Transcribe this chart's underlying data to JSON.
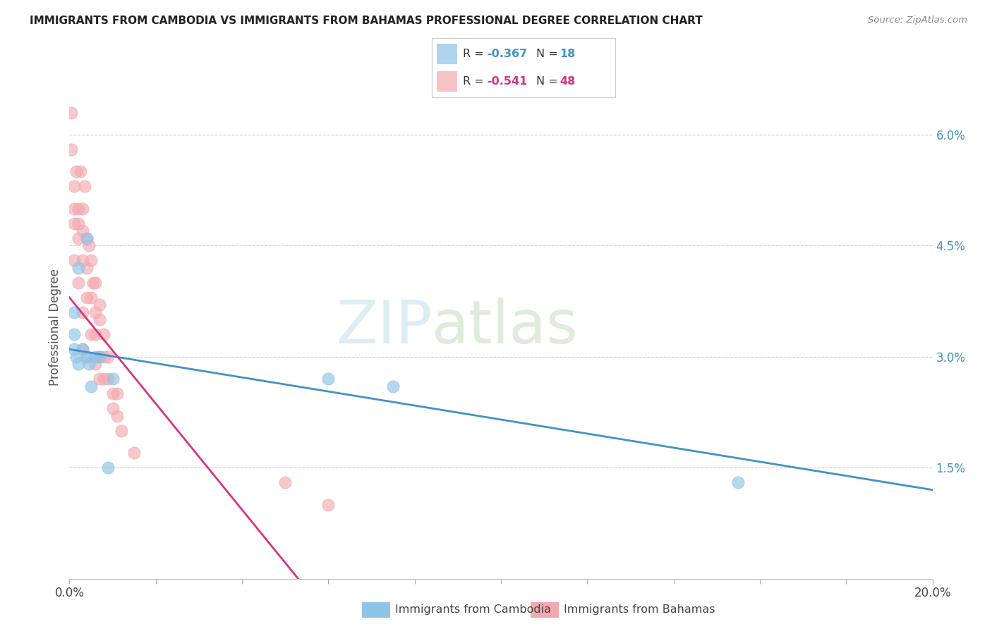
{
  "title": "IMMIGRANTS FROM CAMBODIA VS IMMIGRANTS FROM BAHAMAS PROFESSIONAL DEGREE CORRELATION CHART",
  "source": "Source: ZipAtlas.com",
  "ylabel": "Professional Degree",
  "right_yticks": [
    "6.0%",
    "4.5%",
    "3.0%",
    "1.5%"
  ],
  "right_ytick_vals": [
    0.06,
    0.045,
    0.03,
    0.015
  ],
  "xlim": [
    0.0,
    0.2
  ],
  "ylim": [
    0.0,
    0.068
  ],
  "color_cambodia": "#8ec4e8",
  "color_bahamas": "#f4a9b0",
  "color_line_cambodia": "#4292c6",
  "color_line_bahamas": "#d63384",
  "watermark_zip": "ZIP",
  "watermark_atlas": "atlas",
  "cambodia_x": [
    0.001,
    0.001,
    0.001,
    0.0015,
    0.002,
    0.002,
    0.003,
    0.004,
    0.004,
    0.0045,
    0.005,
    0.006,
    0.007,
    0.009,
    0.01,
    0.06,
    0.075,
    0.155
  ],
  "cambodia_y": [
    0.036,
    0.033,
    0.031,
    0.03,
    0.042,
    0.029,
    0.031,
    0.046,
    0.03,
    0.029,
    0.026,
    0.03,
    0.03,
    0.015,
    0.027,
    0.027,
    0.026,
    0.013
  ],
  "bahamas_x": [
    0.0005,
    0.0005,
    0.001,
    0.001,
    0.001,
    0.001,
    0.0015,
    0.002,
    0.002,
    0.002,
    0.002,
    0.0025,
    0.003,
    0.003,
    0.003,
    0.003,
    0.003,
    0.0035,
    0.004,
    0.004,
    0.004,
    0.004,
    0.0045,
    0.005,
    0.005,
    0.005,
    0.0055,
    0.006,
    0.006,
    0.006,
    0.006,
    0.007,
    0.007,
    0.007,
    0.007,
    0.008,
    0.008,
    0.008,
    0.009,
    0.009,
    0.01,
    0.01,
    0.011,
    0.011,
    0.012,
    0.015,
    0.05,
    0.06
  ],
  "bahamas_y": [
    0.063,
    0.058,
    0.053,
    0.05,
    0.048,
    0.043,
    0.055,
    0.05,
    0.048,
    0.046,
    0.04,
    0.055,
    0.05,
    0.047,
    0.043,
    0.036,
    0.031,
    0.053,
    0.046,
    0.042,
    0.038,
    0.03,
    0.045,
    0.043,
    0.038,
    0.033,
    0.04,
    0.04,
    0.036,
    0.033,
    0.029,
    0.037,
    0.035,
    0.03,
    0.027,
    0.033,
    0.03,
    0.027,
    0.03,
    0.027,
    0.025,
    0.023,
    0.025,
    0.022,
    0.02,
    0.017,
    0.013,
    0.01
  ],
  "cam_line_x": [
    0.0,
    0.2
  ],
  "cam_line_y": [
    0.031,
    0.012
  ],
  "bah_line_x": [
    0.0,
    0.053
  ],
  "bah_line_y": [
    0.038,
    0.0
  ]
}
